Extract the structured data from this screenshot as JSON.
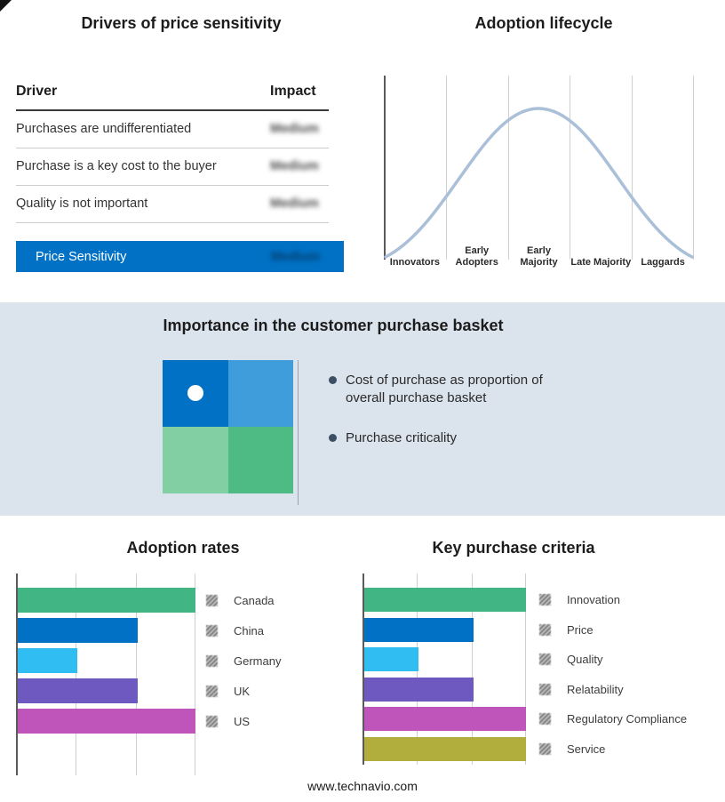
{
  "footer": {
    "text": "www.technavio.com"
  },
  "drivers_panel": {
    "title": "Drivers of price sensitivity",
    "columns": {
      "driver": "Driver",
      "impact": "Impact"
    },
    "rows": [
      {
        "label": "Purchases are undifferentiated",
        "impact": "Medium"
      },
      {
        "label": "Purchase is a key cost to the buyer",
        "impact": "Medium"
      },
      {
        "label": "Quality is not important",
        "impact": "Medium"
      }
    ],
    "summary_row": {
      "label": "Price Sensitivity",
      "impact": "Medium"
    },
    "accent_color": "#0071c5"
  },
  "basket_panel": {
    "title": "Importance in the customer purchase basket",
    "bullets": [
      "Cost of purchase as proportion of overall purchase basket",
      "Purchase criticality"
    ],
    "quadrant_colors": {
      "top_left": "#0071c5",
      "top_right": "#3f9ddb",
      "bottom_left": "#82cfa3",
      "bottom_right": "#4eba84"
    }
  },
  "chart_data": [
    {
      "type": "line",
      "title": "Adoption lifecycle",
      "categories": [
        "Innovators",
        "Early Adopters",
        "Early Majority",
        "Late Majority",
        "Laggards"
      ],
      "shape": "bell-curve",
      "line_color": "#aabfd8",
      "grid": true
    },
    {
      "type": "bar",
      "title": "Adoption rates",
      "orientation": "horizontal",
      "categories": [
        "Canada",
        "China",
        "Germany",
        "UK",
        "US"
      ],
      "values": [
        3,
        2,
        1,
        2,
        3
      ],
      "xlim": [
        0,
        3
      ],
      "colors": [
        "#41b583",
        "#0071c5",
        "#2fbdf2",
        "#6d59bf",
        "#bf54ba"
      ],
      "grid": true,
      "legend_position": "right"
    },
    {
      "type": "bar",
      "title": "Key purchase criteria",
      "orientation": "horizontal",
      "categories": [
        "Innovation",
        "Price",
        "Quality",
        "Relatability",
        "Regulatory Compliance",
        "Service"
      ],
      "values": [
        3,
        2,
        1,
        2,
        3,
        3
      ],
      "xlim": [
        0,
        3
      ],
      "colors": [
        "#41b583",
        "#0071c5",
        "#2fbdf2",
        "#6d59bf",
        "#bf54ba",
        "#b1ae3e"
      ],
      "grid": true,
      "legend_position": "right"
    }
  ]
}
